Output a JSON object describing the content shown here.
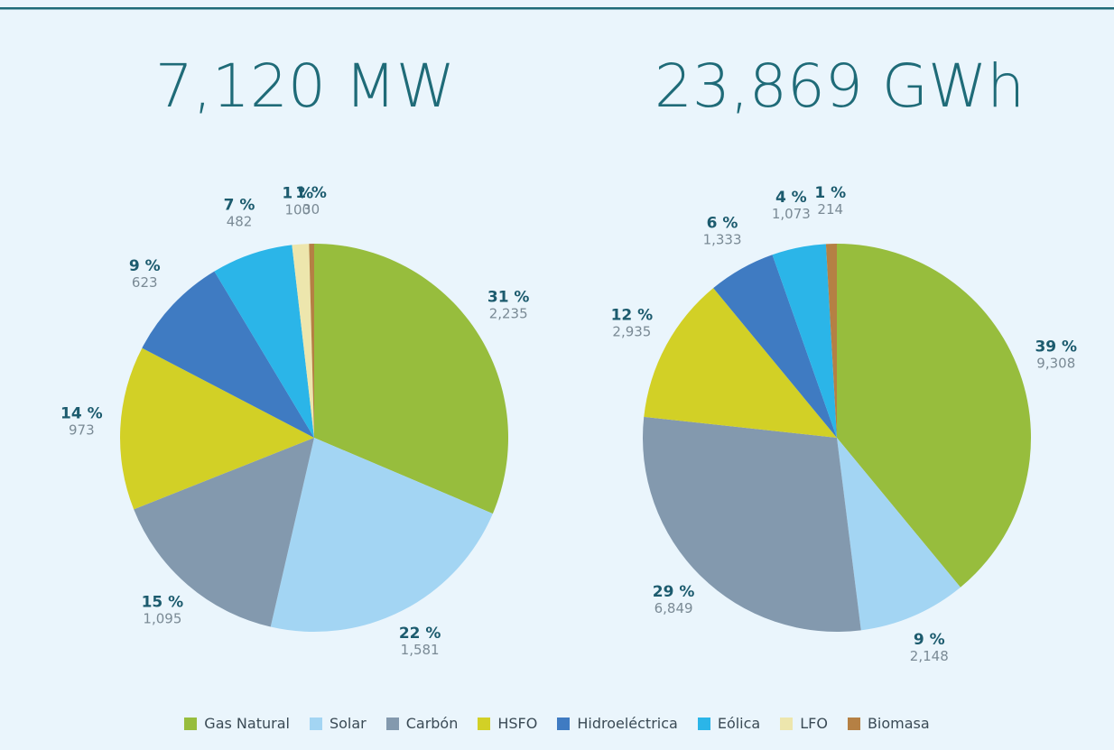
{
  "chart_data": [
    {
      "type": "pie",
      "title": "7,120 MW",
      "categories": [
        "Gas Natural",
        "Solar",
        "Carbón",
        "HSFO",
        "Hidroeléctrica",
        "Eólica",
        "LFO",
        "Biomasa"
      ],
      "colors": [
        "#97bd3d",
        "#a3d5f3",
        "#8399ae",
        "#d2d026",
        "#3f7bc2",
        "#2bb5e8",
        "#ede6ad",
        "#b58044"
      ],
      "values": [
        2235,
        1581,
        1095,
        973,
        623,
        482,
        100,
        30
      ],
      "value_labels": [
        "2,235",
        "1,581",
        "1,095",
        "973",
        "623",
        "482",
        "100",
        "30"
      ],
      "percents": [
        31,
        22,
        15,
        14,
        9,
        7,
        1,
        1
      ],
      "percent_labels": [
        "31 %",
        "22 %",
        "15 %",
        "14 %",
        "9 %",
        "7 %",
        "1 %",
        "1 %"
      ]
    },
    {
      "type": "pie",
      "title": "23,869 GWh",
      "categories": [
        "Gas Natural",
        "Solar",
        "Carbón",
        "HSFO",
        "Hidroeléctrica",
        "Eólica",
        "Biomasa"
      ],
      "colors": [
        "#97bd3d",
        "#a3d5f3",
        "#8399ae",
        "#d2d026",
        "#3f7bc2",
        "#2bb5e8",
        "#b58044"
      ],
      "values": [
        9308,
        2148,
        6849,
        2935,
        1333,
        1073,
        214
      ],
      "value_labels": [
        "9,308",
        "2,148",
        "6,849",
        "2,935",
        "1,333",
        "1,073",
        "214"
      ],
      "percents": [
        39,
        9,
        29,
        12,
        6,
        4,
        1
      ],
      "percent_labels": [
        "39 %",
        "9 %",
        "29 %",
        "12 %",
        "6 %",
        "4 %",
        "1 %"
      ]
    }
  ]
}
